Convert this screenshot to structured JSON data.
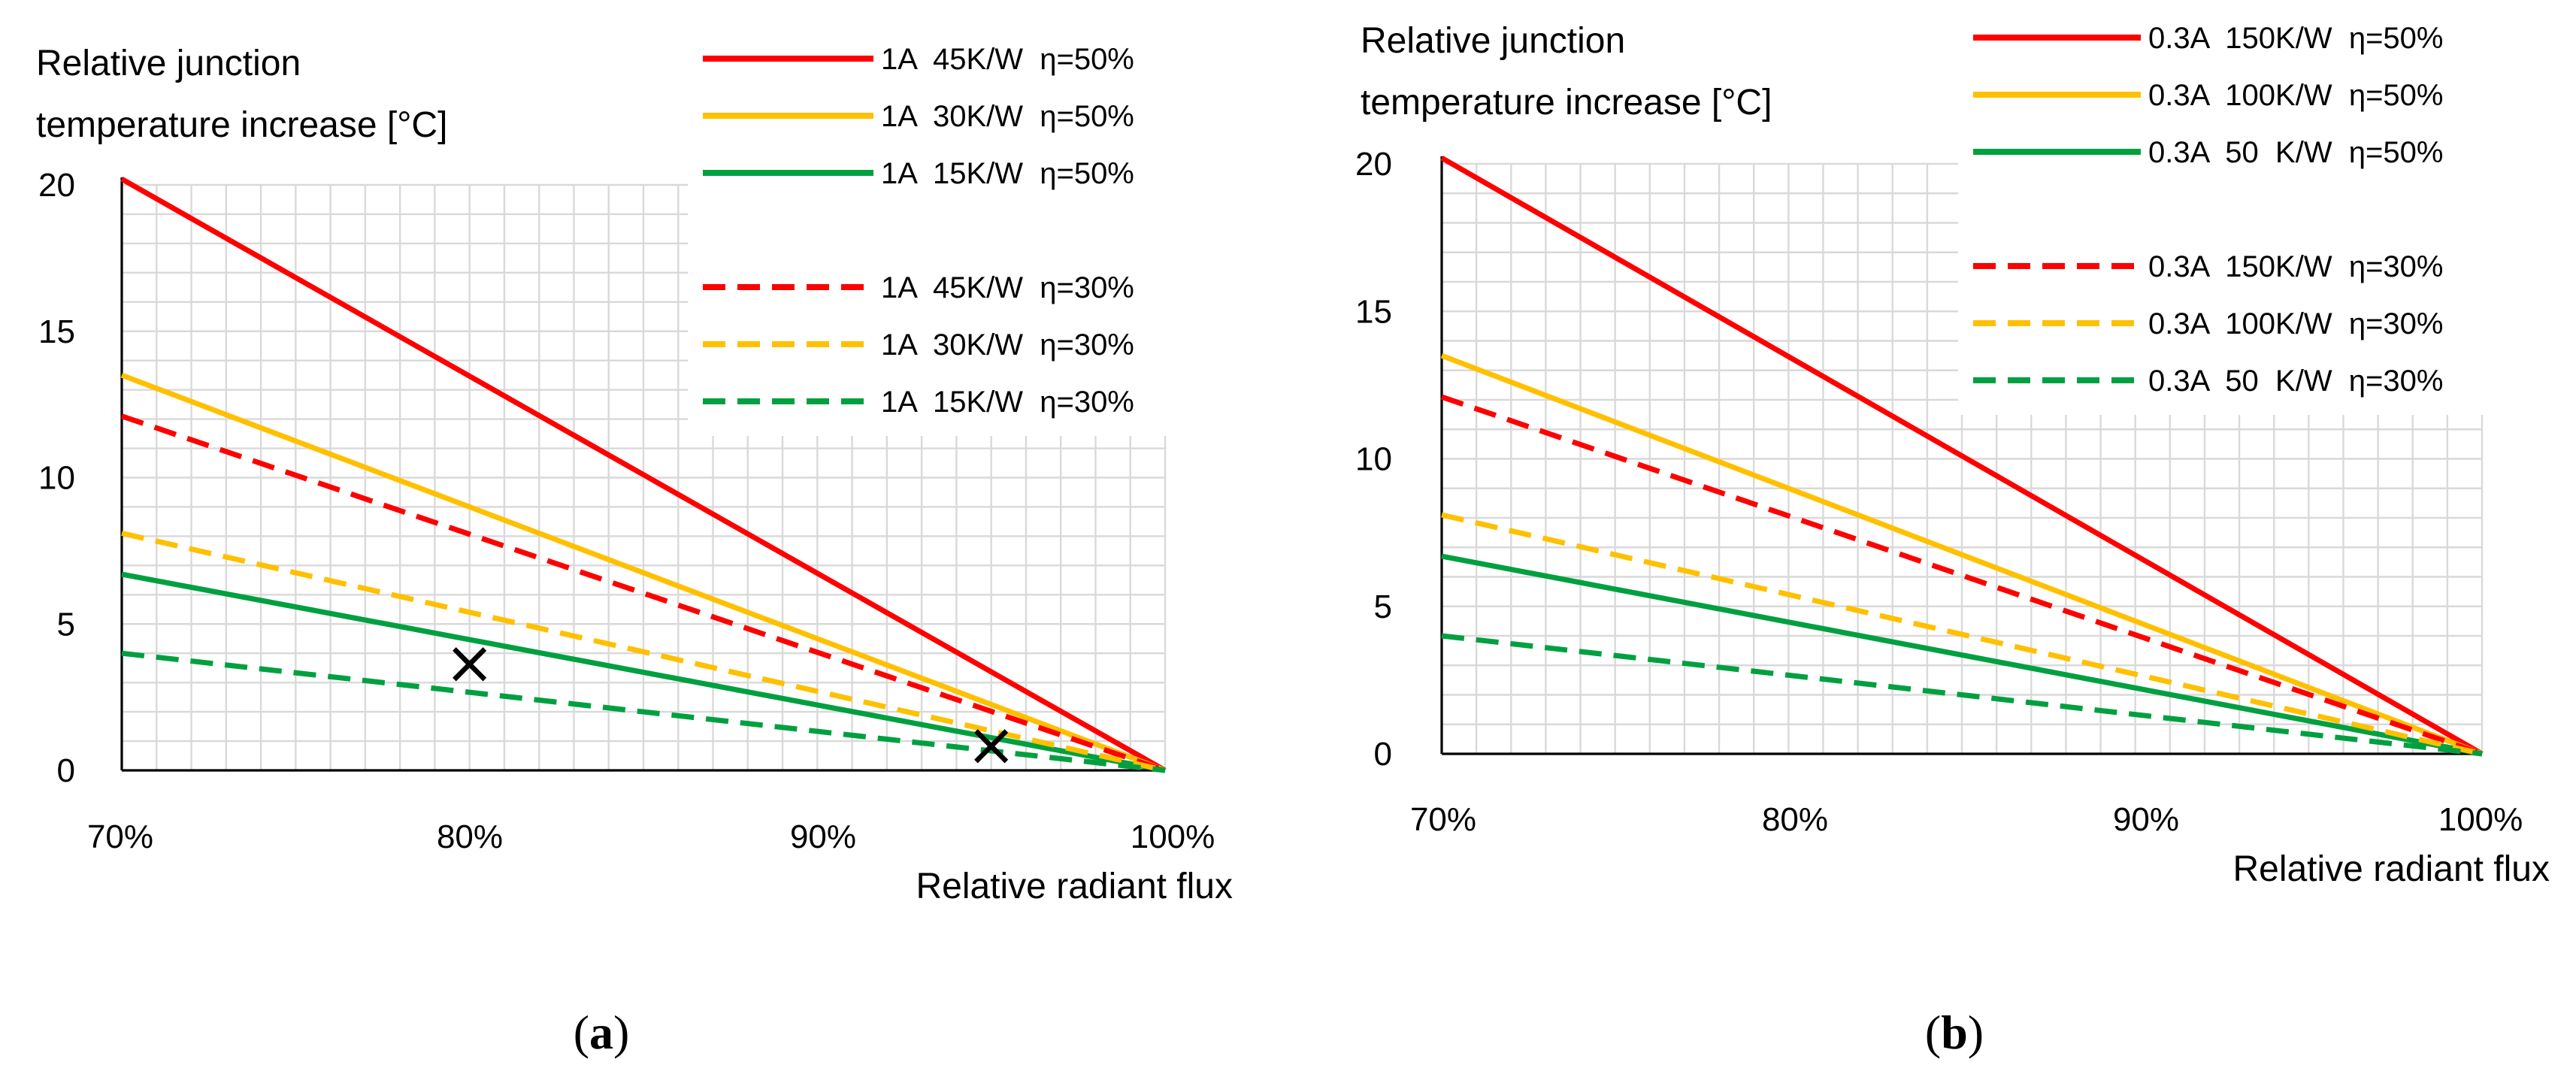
{
  "chart_data": [
    {
      "panel": "a",
      "caption_letter": "a",
      "type": "line",
      "ylabel_lines": [
        "Relative junction",
        "temperature increase [°C]"
      ],
      "xlabel": "Relative radiant flux",
      "xlim": [
        70,
        100
      ],
      "ylim": [
        0,
        20
      ],
      "xticks": [
        70,
        80,
        90,
        100
      ],
      "xtick_labels": [
        "70%",
        "80%",
        "90%",
        "100%"
      ],
      "yticks": [
        0,
        5,
        10,
        15,
        20
      ],
      "ytick_labels": [
        "0",
        "5",
        "10",
        "15",
        "20"
      ],
      "series": [
        {
          "name": "1A  45K/W  η=50%",
          "color": "#ff0000",
          "dash": "solid",
          "x": [
            70,
            100
          ],
          "y": [
            20.2,
            0
          ]
        },
        {
          "name": "1A  30K/W  η=50%",
          "color": "#ffc000",
          "dash": "solid",
          "x": [
            70,
            100
          ],
          "y": [
            13.5,
            0
          ]
        },
        {
          "name": "1A  15K/W  η=50%",
          "color": "#00a040",
          "dash": "solid",
          "x": [
            70,
            100
          ],
          "y": [
            6.7,
            0
          ]
        },
        {
          "name": "1A  45K/W  η=30%",
          "color": "#ff0000",
          "dash": "dashed",
          "x": [
            70,
            100
          ],
          "y": [
            12.1,
            0
          ]
        },
        {
          "name": "1A  30K/W  η=30%",
          "color": "#ffc000",
          "dash": "dashed",
          "x": [
            70,
            100
          ],
          "y": [
            8.1,
            0
          ]
        },
        {
          "name": "1A  15K/W  η=30%",
          "color": "#00a040",
          "dash": "dashed",
          "x": [
            70,
            100
          ],
          "y": [
            4.0,
            0
          ]
        }
      ],
      "markers": [
        {
          "x": 80,
          "y": 3.6,
          "symbol": "×"
        },
        {
          "x": 95,
          "y": 0.8,
          "symbol": "×"
        }
      ]
    },
    {
      "panel": "b",
      "caption_letter": "b",
      "type": "line",
      "ylabel_lines": [
        "Relative junction",
        "temperature increase [°C]"
      ],
      "xlabel": "Relative radiant flux",
      "xlim": [
        70,
        100
      ],
      "ylim": [
        0,
        20
      ],
      "xticks": [
        70,
        80,
        90,
        100
      ],
      "xtick_labels": [
        "70%",
        "80%",
        "90%",
        "100%"
      ],
      "yticks": [
        0,
        5,
        10,
        15,
        20
      ],
      "ytick_labels": [
        "0",
        "5",
        "10",
        "15",
        "20"
      ],
      "series": [
        {
          "name": "0.3A  150K/W  η=50%",
          "color": "#ff0000",
          "dash": "solid",
          "x": [
            70,
            100
          ],
          "y": [
            20.2,
            0
          ]
        },
        {
          "name": "0.3A  100K/W  η=50%",
          "color": "#ffc000",
          "dash": "solid",
          "x": [
            70,
            100
          ],
          "y": [
            13.5,
            0
          ]
        },
        {
          "name": "0.3A  50  K/W  η=50%",
          "color": "#00a040",
          "dash": "solid",
          "x": [
            70,
            100
          ],
          "y": [
            6.7,
            0
          ]
        },
        {
          "name": "0.3A  150K/W  η=30%",
          "color": "#ff0000",
          "dash": "dashed",
          "x": [
            70,
            100
          ],
          "y": [
            12.1,
            0
          ]
        },
        {
          "name": "0.3A  100K/W  η=30%",
          "color": "#ffc000",
          "dash": "dashed",
          "x": [
            70,
            100
          ],
          "y": [
            8.1,
            0
          ]
        },
        {
          "name": "0.3A  50  K/W  η=30%",
          "color": "#00a040",
          "dash": "dashed",
          "x": [
            70,
            100
          ],
          "y": [
            4.0,
            0
          ]
        }
      ],
      "markers": []
    }
  ]
}
